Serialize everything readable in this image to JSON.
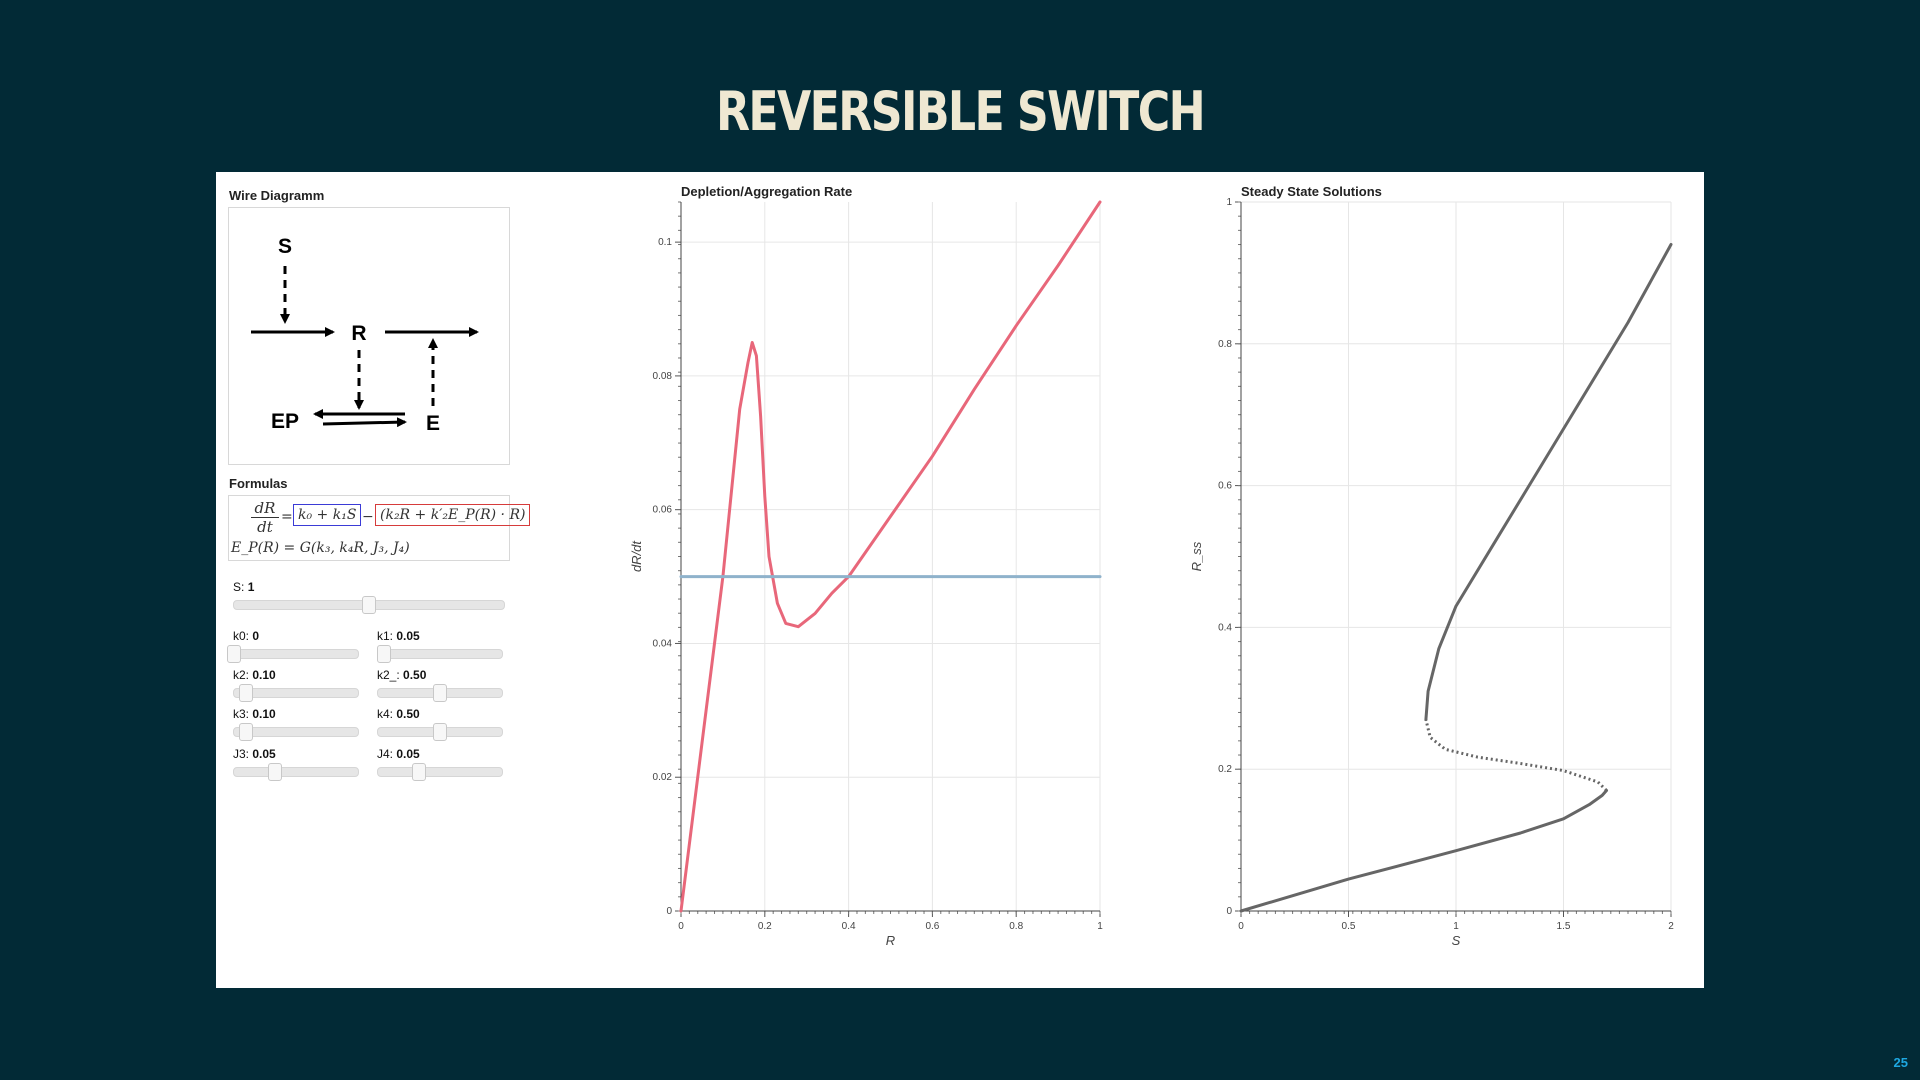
{
  "slide": {
    "title": "REVERSIBLE SWITCH",
    "page_number": "25"
  },
  "wire_diagram": {
    "title": "Wire Diagramm",
    "nodes": {
      "s": "S",
      "r": "R",
      "ep": "EP",
      "e": "E"
    }
  },
  "formulas": {
    "title": "Formulas",
    "lhs_num": "dR",
    "lhs_den": "dt",
    "equals": "=",
    "production_term": "k₀ + k₁S",
    "minus": "−",
    "degradation_term": "(k₂R + k′₂E_P(R) · R)",
    "ep_definition": "E_P(R) = G(k₃, k₄R, J₃, J₄)"
  },
  "sliders": {
    "S": {
      "label": "S:",
      "value": "1",
      "fraction": 0.5
    },
    "k0": {
      "label": "k0:",
      "value": "0",
      "fraction": 0.0
    },
    "k1": {
      "label": "k1:",
      "value": "0.05",
      "fraction": 0.05
    },
    "k2": {
      "label": "k2:",
      "value": "0.10",
      "fraction": 0.1
    },
    "k2_": {
      "label": "k2_:",
      "value": "0.50",
      "fraction": 0.5
    },
    "k3": {
      "label": "k3:",
      "value": "0.10",
      "fraction": 0.1
    },
    "k4": {
      "label": "k4:",
      "value": "0.50",
      "fraction": 0.5
    },
    "J3": {
      "label": "J3:",
      "value": "0.05",
      "fraction": 0.33
    },
    "J4": {
      "label": "J4:",
      "value": "0.05",
      "fraction": 0.33
    }
  },
  "chart_data": [
    {
      "type": "line",
      "title": "Depletion/Aggregation Rate",
      "xlabel": "R",
      "ylabel": "dR/dt",
      "xlim": [
        0,
        1
      ],
      "ylim": [
        0,
        0.106
      ],
      "xticks": [
        "0",
        "0.2",
        "0.4",
        "0.6",
        "0.8",
        "1"
      ],
      "yticks": [
        "0",
        "0.02",
        "0.04",
        "0.06",
        "0.08",
        "0.1"
      ],
      "grid": true,
      "series": [
        {
          "color": "#e8677a",
          "x": [
            0,
            0.05,
            0.1,
            0.14,
            0.16,
            0.17,
            0.18,
            0.19,
            0.2,
            0.21,
            0.23,
            0.25,
            0.28,
            0.32,
            0.36,
            0.4,
            0.5,
            0.6,
            0.7,
            0.8,
            0.9,
            1.0
          ],
          "y": [
            0,
            0.025,
            0.05,
            0.075,
            0.082,
            0.085,
            0.083,
            0.074,
            0.062,
            0.053,
            0.046,
            0.043,
            0.0425,
            0.0445,
            0.0475,
            0.05,
            0.059,
            0.068,
            0.078,
            0.0875,
            0.0965,
            0.106
          ]
        },
        {
          "color": "#8fb2cb",
          "x": [
            0,
            1
          ],
          "y": [
            0.05,
            0.05
          ]
        }
      ]
    },
    {
      "type": "line",
      "title": "Steady State Solutions",
      "xlabel": "S",
      "ylabel": "R_ss",
      "xlim": [
        0,
        2
      ],
      "ylim": [
        0,
        1
      ],
      "xticks": [
        "0",
        "0.5",
        "1",
        "1.5",
        "2"
      ],
      "yticks": [
        "0",
        "0.2",
        "0.4",
        "0.6",
        "0.8",
        "1"
      ],
      "grid": true,
      "series": [
        {
          "color": "#666666",
          "style": "solid",
          "x": [
            0,
            0.5,
            1.0,
            1.3,
            1.5,
            1.62,
            1.68,
            1.7
          ],
          "y": [
            0,
            0.045,
            0.085,
            0.11,
            0.13,
            0.15,
            0.163,
            0.17
          ]
        },
        {
          "color": "#666666",
          "style": "dotted",
          "x": [
            1.7,
            1.66,
            1.5,
            1.3,
            1.1,
            0.95,
            0.88,
            0.86
          ],
          "y": [
            0.17,
            0.182,
            0.198,
            0.208,
            0.217,
            0.228,
            0.245,
            0.27
          ]
        },
        {
          "color": "#666666",
          "style": "solid",
          "x": [
            0.86,
            0.87,
            0.92,
            1.0,
            1.2,
            1.5,
            1.8,
            2.0
          ],
          "y": [
            0.27,
            0.31,
            0.37,
            0.43,
            0.53,
            0.68,
            0.83,
            0.94
          ]
        }
      ]
    }
  ]
}
